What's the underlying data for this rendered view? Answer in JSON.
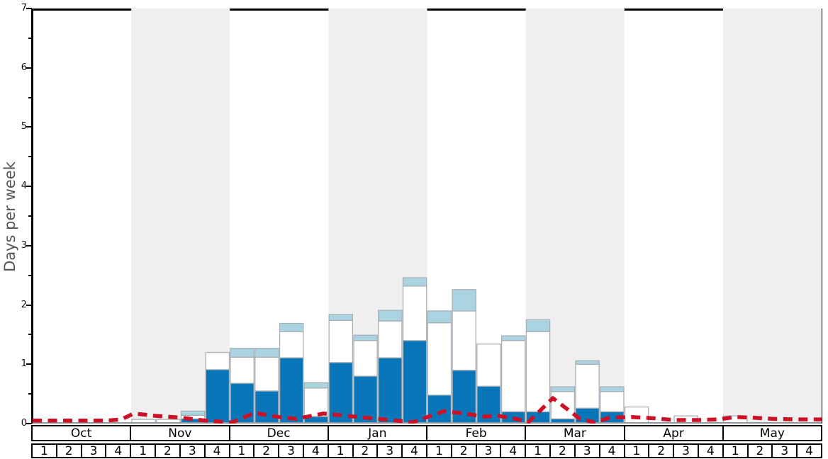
{
  "ylabel": "Days per week",
  "chart_data": {
    "type": "bar",
    "stacked": true,
    "title": "",
    "xlabel": "",
    "ylabel": "Days per week",
    "ylim": [
      0,
      7
    ],
    "yticks": [
      "0",
      "1",
      "2",
      "3",
      "4",
      "5",
      "6",
      "7"
    ],
    "yticks_minor": [
      0.5,
      1.5,
      2.5,
      3.5,
      4.5,
      5.5,
      6.5
    ],
    "grid": false,
    "legend": "none",
    "months": [
      "Oct",
      "Nov",
      "Dec",
      "Jan",
      "Feb",
      "Mar",
      "Apr",
      "May"
    ],
    "week_numbers": [
      "1",
      "2",
      "3",
      "4"
    ],
    "shaded_months": [
      "Nov",
      "Jan",
      "Mar",
      "May"
    ],
    "categories": [
      "Oct-1",
      "Oct-2",
      "Oct-3",
      "Oct-4",
      "Nov-1",
      "Nov-2",
      "Nov-3",
      "Nov-4",
      "Dec-1",
      "Dec-2",
      "Dec-3",
      "Dec-4",
      "Jan-1",
      "Jan-2",
      "Jan-3",
      "Jan-4",
      "Feb-1",
      "Feb-2",
      "Feb-3",
      "Feb-4",
      "Mar-1",
      "Mar-2",
      "Mar-3",
      "Mar-4",
      "Apr-1",
      "Apr-2",
      "Apr-3",
      "Apr-4",
      "May-1",
      "May-2",
      "May-3",
      "May-4"
    ],
    "series": [
      {
        "name": "dark-blue-days",
        "color": "#0a76ba",
        "values": [
          0,
          0,
          0,
          0,
          0,
          0,
          0.08,
          0.91,
          0.68,
          0.55,
          1.11,
          0.12,
          1.03,
          0.8,
          1.11,
          1.4,
          0.48,
          0.9,
          0.63,
          0.2,
          0.2,
          0.08,
          0.26,
          0.2,
          0,
          0,
          0,
          0,
          0,
          0,
          0,
          0
        ]
      },
      {
        "name": "white-days",
        "color": "#fffffe",
        "values": [
          0,
          0,
          0,
          0,
          0.07,
          0.07,
          0.06,
          0.29,
          0.44,
          0.57,
          0.44,
          0.48,
          0.71,
          0.6,
          0.62,
          0.92,
          1.22,
          1.0,
          0.71,
          1.2,
          1.35,
          0.46,
          0.74,
          0.34,
          0.28,
          0,
          0.13,
          0,
          0.13,
          0,
          0,
          0
        ]
      },
      {
        "name": "light-blue-days",
        "color": "#abd4e3",
        "values": [
          0,
          0,
          0,
          0,
          0,
          0,
          0.07,
          0,
          0.15,
          0.15,
          0.14,
          0.09,
          0.1,
          0.09,
          0.18,
          0.14,
          0.2,
          0.36,
          0,
          0.08,
          0.2,
          0.08,
          0.06,
          0.08,
          0,
          0,
          0,
          0,
          0,
          0,
          0,
          0
        ]
      }
    ],
    "average_line": {
      "name": "red-dashed-average",
      "color": "#cc1126",
      "style": "dashed",
      "points_week_value": [
        [
          0,
          0.05
        ],
        [
          1,
          0.05
        ],
        [
          2,
          0.05
        ],
        [
          3,
          0.05
        ],
        [
          3.6,
          0.07
        ],
        [
          4.1,
          0.17
        ],
        [
          5,
          0.13
        ],
        [
          6,
          0.1
        ],
        [
          7,
          0.05
        ],
        [
          8.1,
          0.02
        ],
        [
          9.0,
          0.18
        ],
        [
          10,
          0.11
        ],
        [
          10.7,
          0.08
        ],
        [
          11.8,
          0.17
        ],
        [
          13,
          0.12
        ],
        [
          14,
          0.08
        ],
        [
          15,
          0.04
        ],
        [
          15.4,
          0.02
        ],
        [
          16.7,
          0.21
        ],
        [
          17.5,
          0.17
        ],
        [
          18.3,
          0.12
        ],
        [
          18.9,
          0.13
        ],
        [
          19.7,
          0.07
        ],
        [
          20.1,
          0.02
        ],
        [
          21.1,
          0.43
        ],
        [
          21.6,
          0.27
        ],
        [
          22.2,
          0.08
        ],
        [
          22.8,
          0.02
        ],
        [
          23.4,
          0.1
        ],
        [
          24.3,
          0.11
        ],
        [
          25.2,
          0.09
        ],
        [
          26,
          0.06
        ],
        [
          27,
          0.06
        ],
        [
          27.8,
          0.07
        ],
        [
          28.5,
          0.11
        ],
        [
          29.2,
          0.1
        ],
        [
          30,
          0.08
        ],
        [
          31,
          0.07
        ],
        [
          32,
          0.07
        ]
      ]
    },
    "colors": {
      "band_shaded": "#efefef",
      "band_plain": "#ffffff",
      "bar_border": "#a9b0b6",
      "axis_black": "#000000",
      "baseline_gray": "#8f969b",
      "ylabel_gray": "#555555"
    }
  }
}
